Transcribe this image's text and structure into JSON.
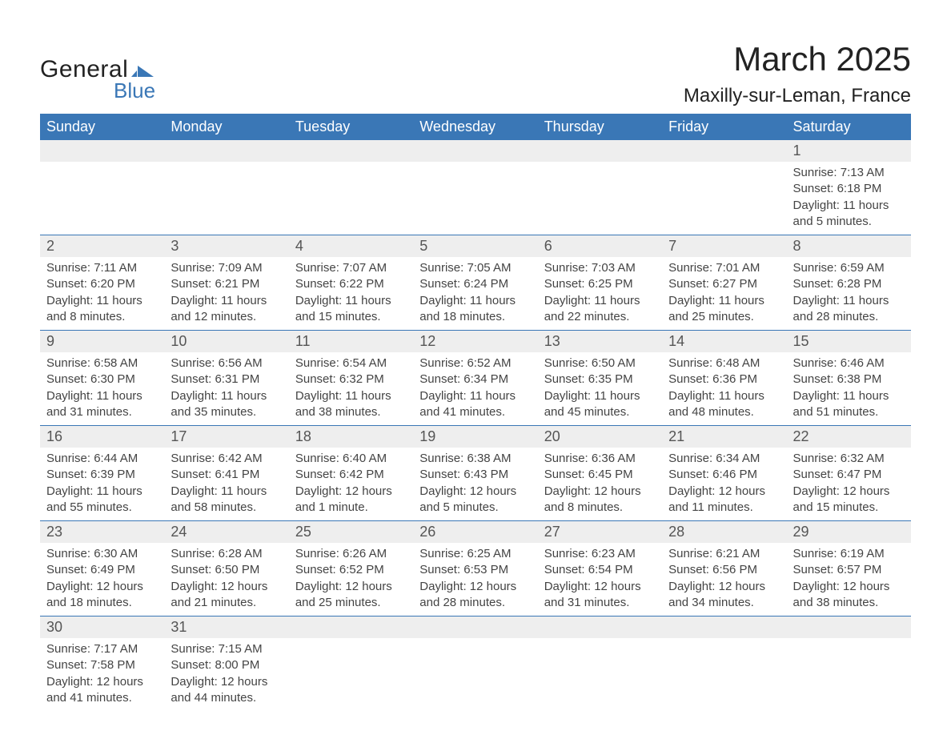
{
  "logo": {
    "general": "General",
    "blue": "Blue",
    "icon_color": "#3a77b6"
  },
  "title": "March 2025",
  "location": "Maxilly-sur-Leman, France",
  "colors": {
    "header_bg": "#3a77b6",
    "header_text": "#ffffff",
    "daynum_bg": "#eeeeee",
    "daynum_text": "#555555",
    "body_text": "#444444",
    "row_divider": "#3a77b6",
    "page_bg": "#ffffff"
  },
  "typography": {
    "title_fontsize": 42,
    "location_fontsize": 24,
    "weekday_fontsize": 18,
    "daynum_fontsize": 18,
    "detail_fontsize": 15,
    "family": "Arial"
  },
  "weekdays": [
    "Sunday",
    "Monday",
    "Tuesday",
    "Wednesday",
    "Thursday",
    "Friday",
    "Saturday"
  ],
  "weeks": [
    [
      null,
      null,
      null,
      null,
      null,
      null,
      {
        "n": "1",
        "sunrise": "Sunrise: 7:13 AM",
        "sunset": "Sunset: 6:18 PM",
        "daylight": "Daylight: 11 hours and 5 minutes."
      }
    ],
    [
      {
        "n": "2",
        "sunrise": "Sunrise: 7:11 AM",
        "sunset": "Sunset: 6:20 PM",
        "daylight": "Daylight: 11 hours and 8 minutes."
      },
      {
        "n": "3",
        "sunrise": "Sunrise: 7:09 AM",
        "sunset": "Sunset: 6:21 PM",
        "daylight": "Daylight: 11 hours and 12 minutes."
      },
      {
        "n": "4",
        "sunrise": "Sunrise: 7:07 AM",
        "sunset": "Sunset: 6:22 PM",
        "daylight": "Daylight: 11 hours and 15 minutes."
      },
      {
        "n": "5",
        "sunrise": "Sunrise: 7:05 AM",
        "sunset": "Sunset: 6:24 PM",
        "daylight": "Daylight: 11 hours and 18 minutes."
      },
      {
        "n": "6",
        "sunrise": "Sunrise: 7:03 AM",
        "sunset": "Sunset: 6:25 PM",
        "daylight": "Daylight: 11 hours and 22 minutes."
      },
      {
        "n": "7",
        "sunrise": "Sunrise: 7:01 AM",
        "sunset": "Sunset: 6:27 PM",
        "daylight": "Daylight: 11 hours and 25 minutes."
      },
      {
        "n": "8",
        "sunrise": "Sunrise: 6:59 AM",
        "sunset": "Sunset: 6:28 PM",
        "daylight": "Daylight: 11 hours and 28 minutes."
      }
    ],
    [
      {
        "n": "9",
        "sunrise": "Sunrise: 6:58 AM",
        "sunset": "Sunset: 6:30 PM",
        "daylight": "Daylight: 11 hours and 31 minutes."
      },
      {
        "n": "10",
        "sunrise": "Sunrise: 6:56 AM",
        "sunset": "Sunset: 6:31 PM",
        "daylight": "Daylight: 11 hours and 35 minutes."
      },
      {
        "n": "11",
        "sunrise": "Sunrise: 6:54 AM",
        "sunset": "Sunset: 6:32 PM",
        "daylight": "Daylight: 11 hours and 38 minutes."
      },
      {
        "n": "12",
        "sunrise": "Sunrise: 6:52 AM",
        "sunset": "Sunset: 6:34 PM",
        "daylight": "Daylight: 11 hours and 41 minutes."
      },
      {
        "n": "13",
        "sunrise": "Sunrise: 6:50 AM",
        "sunset": "Sunset: 6:35 PM",
        "daylight": "Daylight: 11 hours and 45 minutes."
      },
      {
        "n": "14",
        "sunrise": "Sunrise: 6:48 AM",
        "sunset": "Sunset: 6:36 PM",
        "daylight": "Daylight: 11 hours and 48 minutes."
      },
      {
        "n": "15",
        "sunrise": "Sunrise: 6:46 AM",
        "sunset": "Sunset: 6:38 PM",
        "daylight": "Daylight: 11 hours and 51 minutes."
      }
    ],
    [
      {
        "n": "16",
        "sunrise": "Sunrise: 6:44 AM",
        "sunset": "Sunset: 6:39 PM",
        "daylight": "Daylight: 11 hours and 55 minutes."
      },
      {
        "n": "17",
        "sunrise": "Sunrise: 6:42 AM",
        "sunset": "Sunset: 6:41 PM",
        "daylight": "Daylight: 11 hours and 58 minutes."
      },
      {
        "n": "18",
        "sunrise": "Sunrise: 6:40 AM",
        "sunset": "Sunset: 6:42 PM",
        "daylight": "Daylight: 12 hours and 1 minute."
      },
      {
        "n": "19",
        "sunrise": "Sunrise: 6:38 AM",
        "sunset": "Sunset: 6:43 PM",
        "daylight": "Daylight: 12 hours and 5 minutes."
      },
      {
        "n": "20",
        "sunrise": "Sunrise: 6:36 AM",
        "sunset": "Sunset: 6:45 PM",
        "daylight": "Daylight: 12 hours and 8 minutes."
      },
      {
        "n": "21",
        "sunrise": "Sunrise: 6:34 AM",
        "sunset": "Sunset: 6:46 PM",
        "daylight": "Daylight: 12 hours and 11 minutes."
      },
      {
        "n": "22",
        "sunrise": "Sunrise: 6:32 AM",
        "sunset": "Sunset: 6:47 PM",
        "daylight": "Daylight: 12 hours and 15 minutes."
      }
    ],
    [
      {
        "n": "23",
        "sunrise": "Sunrise: 6:30 AM",
        "sunset": "Sunset: 6:49 PM",
        "daylight": "Daylight: 12 hours and 18 minutes."
      },
      {
        "n": "24",
        "sunrise": "Sunrise: 6:28 AM",
        "sunset": "Sunset: 6:50 PM",
        "daylight": "Daylight: 12 hours and 21 minutes."
      },
      {
        "n": "25",
        "sunrise": "Sunrise: 6:26 AM",
        "sunset": "Sunset: 6:52 PM",
        "daylight": "Daylight: 12 hours and 25 minutes."
      },
      {
        "n": "26",
        "sunrise": "Sunrise: 6:25 AM",
        "sunset": "Sunset: 6:53 PM",
        "daylight": "Daylight: 12 hours and 28 minutes."
      },
      {
        "n": "27",
        "sunrise": "Sunrise: 6:23 AM",
        "sunset": "Sunset: 6:54 PM",
        "daylight": "Daylight: 12 hours and 31 minutes."
      },
      {
        "n": "28",
        "sunrise": "Sunrise: 6:21 AM",
        "sunset": "Sunset: 6:56 PM",
        "daylight": "Daylight: 12 hours and 34 minutes."
      },
      {
        "n": "29",
        "sunrise": "Sunrise: 6:19 AM",
        "sunset": "Sunset: 6:57 PM",
        "daylight": "Daylight: 12 hours and 38 minutes."
      }
    ],
    [
      {
        "n": "30",
        "sunrise": "Sunrise: 7:17 AM",
        "sunset": "Sunset: 7:58 PM",
        "daylight": "Daylight: 12 hours and 41 minutes."
      },
      {
        "n": "31",
        "sunrise": "Sunrise: 7:15 AM",
        "sunset": "Sunset: 8:00 PM",
        "daylight": "Daylight: 12 hours and 44 minutes."
      },
      null,
      null,
      null,
      null,
      null
    ]
  ]
}
